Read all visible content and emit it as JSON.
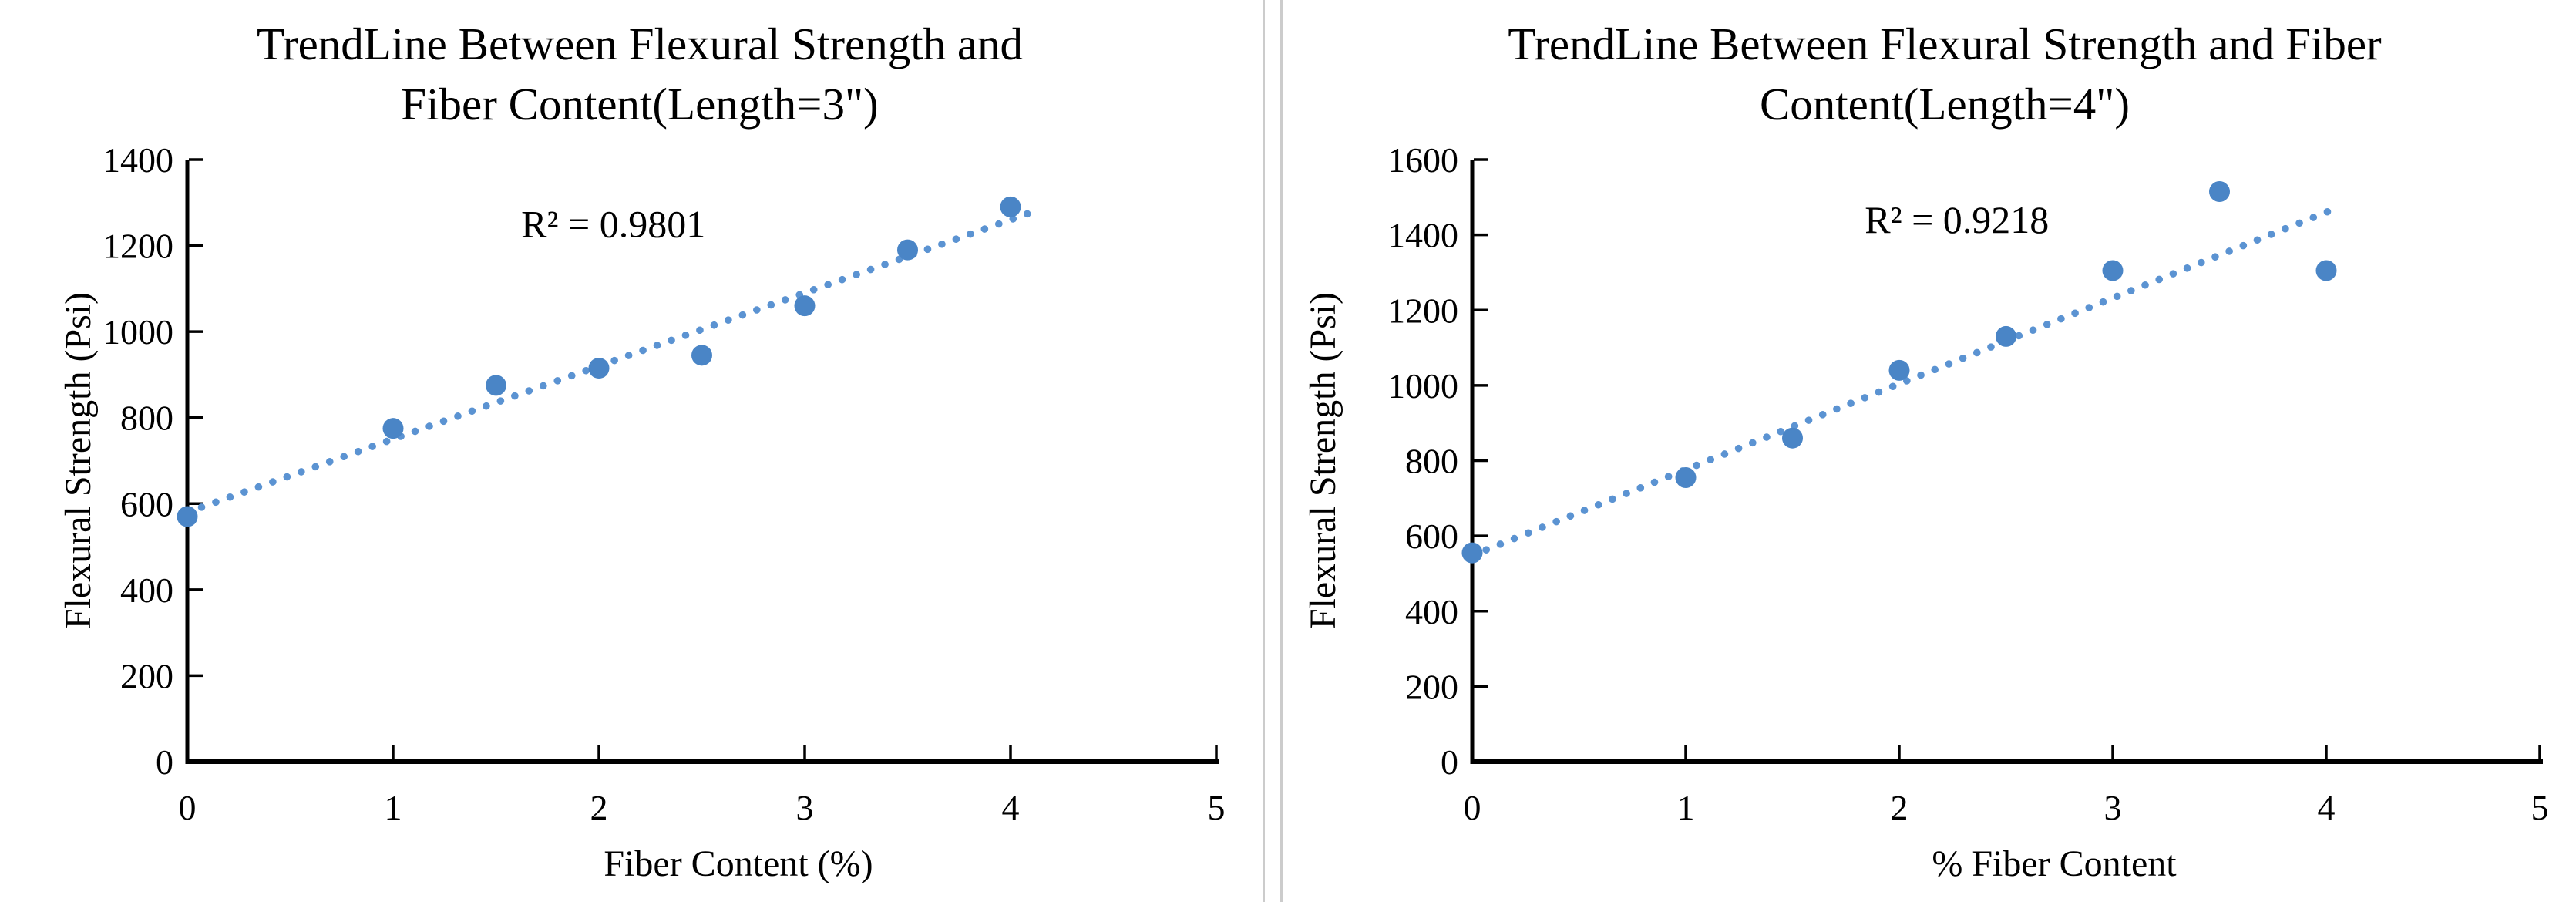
{
  "page": {
    "background": "#ffffff",
    "divider_color": "#cccccc",
    "text_color": "#000000",
    "axis_color": "#000000"
  },
  "chart_data": [
    {
      "type": "scatter",
      "title_lines": [
        "TrendLine Between Flexural Strength and",
        "Fiber Content(Length=3\")"
      ],
      "xlabel": "Fiber Content (%)",
      "ylabel": "Flexural Strength (Psi)",
      "xlim": [
        0,
        5
      ],
      "ylim": [
        0,
        1400
      ],
      "xticks": [
        0,
        1,
        2,
        3,
        4,
        5
      ],
      "yticks": [
        0,
        200,
        400,
        600,
        800,
        1000,
        1200,
        1400
      ],
      "x": [
        0,
        1,
        1.5,
        2,
        2.5,
        3,
        3.5,
        4
      ],
      "y": [
        570,
        775,
        875,
        915,
        945,
        1060,
        1190,
        1290
      ],
      "trendline": {
        "style": "dotted",
        "slope": 170,
        "intercept": 580,
        "x_start": 0,
        "x_end": 4.12
      },
      "annotation": {
        "text": "R² = 0.9801",
        "x": 2.07,
        "y": 1250
      },
      "marker_color": "#4a85c6",
      "trendline_color": "#5b93d2",
      "grid": false,
      "legend": "none"
    },
    {
      "type": "scatter",
      "title_lines": [
        "TrendLine Between Flexural Strength and Fiber",
        "Content(Length=4\")"
      ],
      "xlabel": "% Fiber Content",
      "ylabel": "Flexural Strength (Psi)",
      "xlim": [
        0,
        5
      ],
      "ylim": [
        0,
        1600
      ],
      "xticks": [
        0,
        1,
        2,
        3,
        4,
        5
      ],
      "yticks": [
        0,
        200,
        400,
        600,
        800,
        1000,
        1200,
        1400,
        1600
      ],
      "x": [
        0,
        1,
        1.5,
        2,
        2.5,
        3,
        3.5,
        4
      ],
      "y": [
        555,
        755,
        860,
        1040,
        1130,
        1305,
        1515,
        1305
      ],
      "trendline": {
        "style": "dotted",
        "slope": 228,
        "intercept": 548,
        "x_start": 0,
        "x_end": 4.05
      },
      "annotation": {
        "text": "R² = 0.9218",
        "x": 2.27,
        "y": 1440
      },
      "marker_color": "#4a85c6",
      "trendline_color": "#5b93d2",
      "grid": false,
      "legend": "none"
    }
  ]
}
